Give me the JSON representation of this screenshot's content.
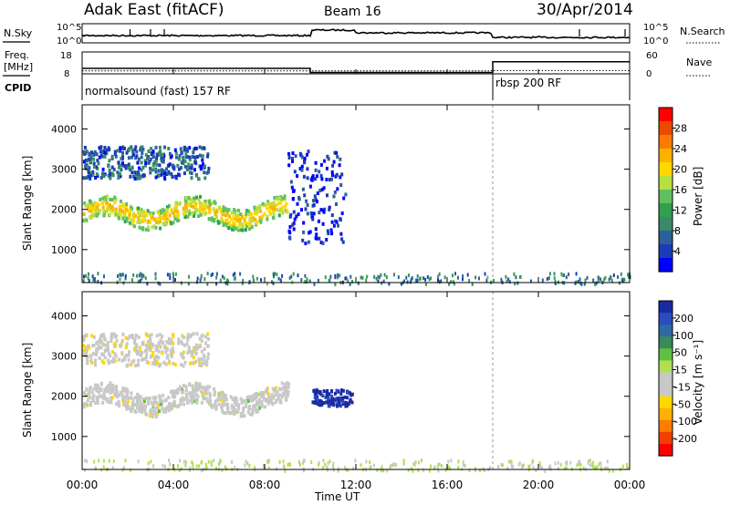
{
  "header": {
    "title": "Adak East (fitACF)",
    "beam": "Beam 16",
    "date": "30/Apr/2014"
  },
  "panel_labels": {
    "nsky": "N.Sky",
    "nsearch": "N.Search",
    "freq": "Freq.",
    "mhz": "[MHz]",
    "cpid": "CPID",
    "nave": "Nave",
    "nsky_ticks": [
      "10^5",
      "10^0"
    ],
    "nsearch_ticks": [
      "10^5",
      "10^0"
    ],
    "freq_ticks": [
      "18",
      "8"
    ],
    "nave_ticks": [
      "60",
      "0"
    ],
    "cpid_names": [
      "normalsound (fast) 157 RF",
      "rbsp 200 RF"
    ]
  },
  "colorbars": {
    "power": {
      "label": "Power [dB]",
      "ticks": [
        "28",
        "24",
        "20",
        "16",
        "12",
        "8",
        "4"
      ],
      "colors": [
        "#ff0000",
        "#e84a00",
        "#ff7a00",
        "#ffb000",
        "#ffd800",
        "#b8e040",
        "#60c060",
        "#30a050",
        "#3a8a6a",
        "#2d5f9a",
        "#1a3db5",
        "#0000ff"
      ]
    },
    "velocity": {
      "label": "Velocity [m s⁻¹]",
      "ticks": [
        "200",
        "100",
        "50",
        "15",
        "-15",
        "-50",
        "-100",
        "-200"
      ],
      "colors": [
        "#1a2aa0",
        "#2b4cc0",
        "#2d6aa0",
        "#3a8a5a",
        "#60c040",
        "#b0e050",
        "#c8c8c8",
        "#c8c8c8",
        "#ffd800",
        "#ffb000",
        "#ff7a00",
        "#f04000",
        "#ff0000"
      ]
    }
  },
  "axes": {
    "ylabel": "Slant Range [km]",
    "xlabel": "Time UT",
    "xticks": [
      "00:00",
      "04:00",
      "08:00",
      "12:00",
      "16:00",
      "20:00",
      "00:00"
    ],
    "yticks": [
      "4000",
      "3000",
      "2000",
      "1000"
    ]
  },
  "chart_data": {
    "type": "heatmap",
    "title": "Adak East (fitACF)",
    "xlabel": "Time UT",
    "ylabel": "Slant Range [km]",
    "x_range_hours": [
      0,
      24
    ],
    "y_range_km": [
      180,
      4600
    ],
    "cpid_switch_hour": 18,
    "frequency_mhz": {
      "before_switch": 10.5,
      "after_switch": 13.5,
      "ylim": [
        8,
        18
      ]
    },
    "nave": {
      "before_switch": 8,
      "after_switch": 9,
      "ylim": [
        0,
        60
      ]
    },
    "power_panel": {
      "colorbar_db": [
        4,
        28
      ],
      "echo_regions": [
        {
          "t_start_h": 0.0,
          "t_end_h": 9.0,
          "range_km": [
            1500,
            2300
          ],
          "typical_db": 16
        },
        {
          "t_start_h": 0.0,
          "t_end_h": 5.5,
          "range_km": [
            2800,
            3600
          ],
          "typical_db": 8
        },
        {
          "t_start_h": 9.0,
          "t_end_h": 11.5,
          "range_km": [
            1200,
            3500
          ],
          "typical_db": 5
        },
        {
          "t_start_h": 0.0,
          "t_end_h": 24.0,
          "range_km": [
            180,
            450
          ],
          "typical_db": 10
        }
      ]
    },
    "velocity_panel": {
      "colorbar_ms": [
        -200,
        200
      ],
      "echo_regions": [
        {
          "t_start_h": 0.0,
          "t_end_h": 9.0,
          "range_km": [
            1500,
            2300
          ],
          "typical_ms": 0
        },
        {
          "t_start_h": 0.0,
          "t_end_h": 5.5,
          "range_km": [
            2800,
            3600
          ],
          "typical_ms": -30
        },
        {
          "t_start_h": 10.0,
          "t_end_h": 11.8,
          "range_km": [
            1800,
            2200
          ],
          "typical_ms": 200
        },
        {
          "t_start_h": 0.0,
          "t_end_h": 24.0,
          "range_km": [
            180,
            450
          ],
          "typical_ms": 20
        }
      ]
    }
  }
}
